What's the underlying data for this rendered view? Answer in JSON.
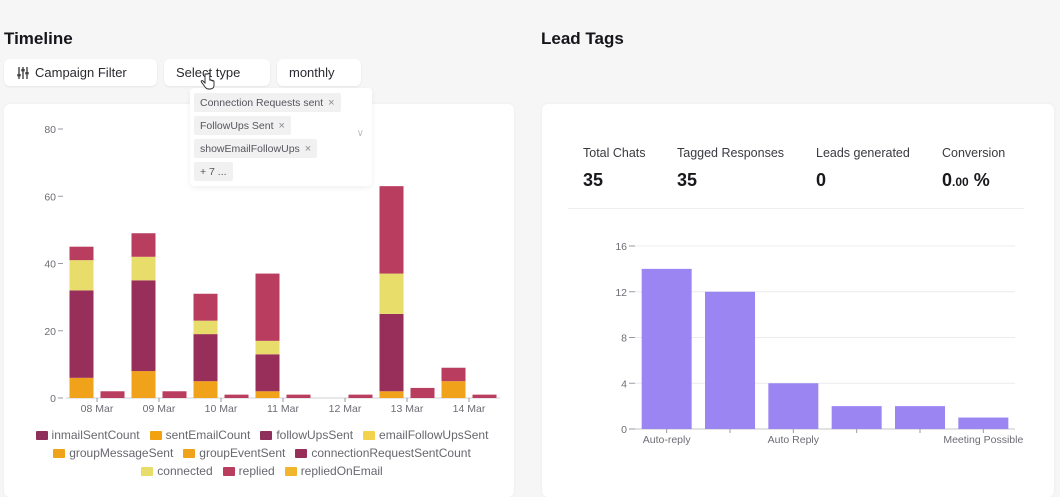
{
  "timeline": {
    "title": "Timeline",
    "campaign_filter_label": "Campaign Filter",
    "select_type_label": "Select type",
    "period_label": "monthly",
    "selected_types": [
      "Connection Requests sent",
      "FollowUps Sent",
      "showEmailFollowUps"
    ],
    "more_types": "+ 7 ...",
    "icons": {
      "filter": "sliders-icon",
      "remove": "close-icon",
      "dropdown": "chevron-down-icon"
    }
  },
  "lead_tags": {
    "title": "Lead Tags",
    "stats": [
      {
        "label": "Total Chats",
        "value": "35"
      },
      {
        "label": "Tagged Responses",
        "value": "35"
      },
      {
        "label": "Leads generated",
        "value": "0"
      },
      {
        "label": "Conversion",
        "value_main": "0",
        "value_decimals": ".00",
        "value_unit": " %"
      }
    ]
  },
  "chart_data": [
    {
      "type": "bar",
      "stacked": true,
      "title": "",
      "xlabel": "",
      "ylabel": "",
      "ylim": [
        0,
        80
      ],
      "yticks": [
        0,
        20,
        40,
        60,
        80
      ],
      "categories": [
        "08 Mar",
        "",
        "09 Mar",
        "",
        "10 Mar",
        "",
        "11 Mar",
        "",
        "12 Mar",
        "",
        "13 Mar",
        "",
        "14 Mar",
        ""
      ],
      "series": [
        {
          "name": "inmailSentCount",
          "color": "#8e2f5c",
          "values": [
            0,
            0,
            0,
            0,
            0,
            0,
            0,
            0,
            0,
            0,
            0,
            0,
            0,
            0
          ]
        },
        {
          "name": "sentEmailCount",
          "color": "#f2a20f",
          "values": [
            0,
            0,
            0,
            0,
            0,
            0,
            0,
            0,
            0,
            0,
            0,
            0,
            0,
            0
          ]
        },
        {
          "name": "followUpsSent",
          "color": "#8e2f5c",
          "values": [
            0,
            0,
            0,
            0,
            0,
            0,
            0,
            0,
            0,
            0,
            0,
            0,
            0,
            0
          ]
        },
        {
          "name": "emailFollowUpsSent",
          "color": "#f3d24e",
          "values": [
            0,
            0,
            0,
            0,
            0,
            0,
            0,
            0,
            0,
            0,
            0,
            0,
            0,
            0
          ]
        },
        {
          "name": "groupMessageSent",
          "color": "#f0a21a",
          "values": [
            6,
            0,
            8,
            0,
            5,
            0,
            2,
            0,
            0,
            0,
            2,
            0,
            5,
            0
          ]
        },
        {
          "name": "groupEventSent",
          "color": "#f0a21a",
          "values": [
            0,
            0,
            0,
            0,
            0,
            0,
            0,
            0,
            0,
            0,
            0,
            0,
            0,
            0
          ]
        },
        {
          "name": "connectionRequestSentCount",
          "color": "#982f5a",
          "values": [
            26,
            0,
            27,
            0,
            14,
            0,
            11,
            0,
            0,
            0,
            23,
            0,
            0,
            0
          ]
        },
        {
          "name": "connected",
          "color": "#e8dd6a",
          "values": [
            9,
            0,
            7,
            0,
            4,
            0,
            4,
            0,
            0,
            0,
            12,
            0,
            0,
            0
          ]
        },
        {
          "name": "replied",
          "color": "#b83d5e",
          "values": [
            4,
            2,
            7,
            2,
            8,
            1,
            20,
            1,
            0,
            1,
            26,
            3,
            4,
            1
          ]
        },
        {
          "name": "repliedOnEmail",
          "color": "#f2b530",
          "values": [
            0,
            0,
            0,
            0,
            0,
            0,
            0,
            0,
            0,
            0,
            0,
            0,
            0,
            0
          ]
        }
      ],
      "legend_placement": "bottom",
      "grid": false
    },
    {
      "type": "bar",
      "title": "",
      "xlabel": "",
      "ylabel": "",
      "ylim": [
        0,
        16
      ],
      "yticks": [
        0,
        4,
        8,
        12,
        16
      ],
      "categories": [
        "Auto-reply",
        "",
        "Auto Reply",
        "",
        "",
        "Meeting Possible"
      ],
      "values": [
        14,
        12,
        4,
        2,
        2,
        1
      ],
      "color": "#9b85f2",
      "grid": true
    }
  ]
}
